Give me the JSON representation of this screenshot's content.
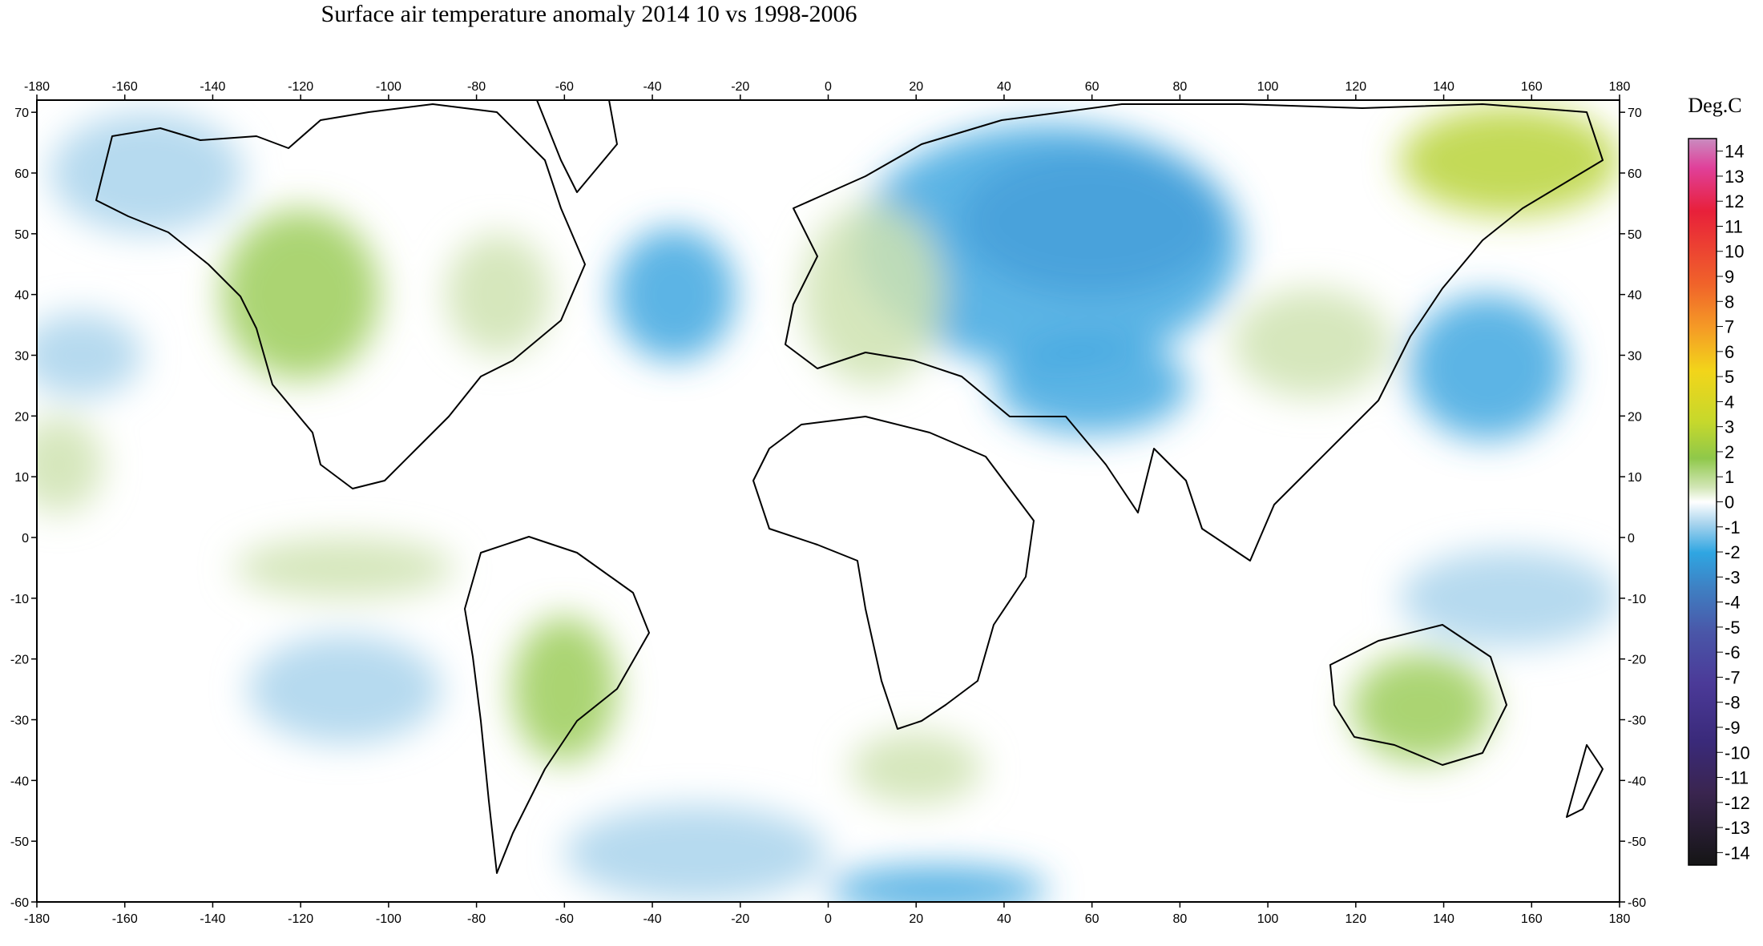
{
  "title": "Surface air temperature anomaly 2014 10 vs 1998-2006",
  "legend": {
    "title": "Deg.C",
    "labels": [
      "14",
      "13",
      "12",
      "11",
      "10",
      "9",
      "8",
      "7",
      "6",
      "5",
      "4",
      "3",
      "2",
      "1",
      "0",
      "-1",
      "-2",
      "-3",
      "-4",
      "-5",
      "-6",
      "-7",
      "-8",
      "-9",
      "-10",
      "-11",
      "-12",
      "-13",
      "-14"
    ]
  },
  "axes": {
    "longitude_ticks": [
      -180,
      -160,
      -140,
      -120,
      -100,
      -80,
      -60,
      -40,
      -20,
      0,
      20,
      40,
      60,
      80,
      100,
      120,
      140,
      160,
      180
    ],
    "latitude_ticks": [
      70,
      60,
      50,
      40,
      30,
      20,
      10,
      0,
      -10,
      -20,
      -30,
      -40,
      -50,
      -60
    ],
    "lon_range": [
      -180,
      180
    ],
    "lat_range": [
      -60,
      72
    ]
  },
  "colors": {
    "strong_cold": "#6a76b8",
    "cold": "#3fa7e0",
    "mild_cold": "#a9d3ec",
    "neutral": "#ffffff",
    "mild_warm": "#cfe3b0",
    "warm": "#9ccc5a",
    "strong_warm": "#b8d43a"
  },
  "anomaly_regions": [
    {
      "lon": 60,
      "lat": 52,
      "rlon": 30,
      "rlat": 12,
      "level": "strong_cold"
    },
    {
      "lon": 50,
      "lat": 48,
      "rlon": 44,
      "rlat": 20,
      "level": "cold"
    },
    {
      "lon": 60,
      "lat": 25,
      "rlon": 22,
      "rlat": 8,
      "level": "cold"
    },
    {
      "lon": -35,
      "lat": 40,
      "rlon": 14,
      "rlat": 11,
      "level": "cold"
    },
    {
      "lon": 150,
      "lat": 28,
      "rlon": 18,
      "rlat": 12,
      "level": "cold"
    },
    {
      "lon": -170,
      "lat": 30,
      "rlon": 14,
      "rlat": 7,
      "level": "mild_cold"
    },
    {
      "lon": -155,
      "lat": 60,
      "rlon": 22,
      "rlat": 10,
      "level": "mild_cold"
    },
    {
      "lon": -110,
      "lat": -25,
      "rlon": 22,
      "rlat": 9,
      "level": "mild_cold"
    },
    {
      "lon": -30,
      "lat": -52,
      "rlon": 30,
      "rlat": 8,
      "level": "mild_cold"
    },
    {
      "lon": 25,
      "lat": -58,
      "rlon": 25,
      "rlat": 4,
      "level": "cold"
    },
    {
      "lon": 155,
      "lat": -10,
      "rlon": 25,
      "rlat": 8,
      "level": "mild_cold"
    },
    {
      "lon": -120,
      "lat": 40,
      "rlon": 18,
      "rlat": 14,
      "level": "warm"
    },
    {
      "lon": -75,
      "lat": 40,
      "rlon": 12,
      "rlat": 10,
      "level": "mild_warm"
    },
    {
      "lon": 10,
      "lat": 40,
      "rlon": 16,
      "rlat": 15,
      "level": "mild_warm"
    },
    {
      "lon": 110,
      "lat": 32,
      "rlon": 18,
      "rlat": 9,
      "level": "mild_warm"
    },
    {
      "lon": 155,
      "lat": 62,
      "rlon": 25,
      "rlat": 9,
      "level": "strong_warm"
    },
    {
      "lon": -60,
      "lat": -25,
      "rlon": 12,
      "rlat": 12,
      "level": "warm"
    },
    {
      "lon": 135,
      "lat": -28,
      "rlon": 16,
      "rlat": 9,
      "level": "warm"
    },
    {
      "lon": -175,
      "lat": 12,
      "rlon": 10,
      "rlat": 8,
      "level": "mild_warm"
    },
    {
      "lon": -110,
      "lat": -5,
      "rlon": 25,
      "rlat": 5,
      "level": "mild_warm"
    },
    {
      "lon": 20,
      "lat": -38,
      "rlon": 15,
      "rlat": 6,
      "level": "mild_warm"
    }
  ]
}
